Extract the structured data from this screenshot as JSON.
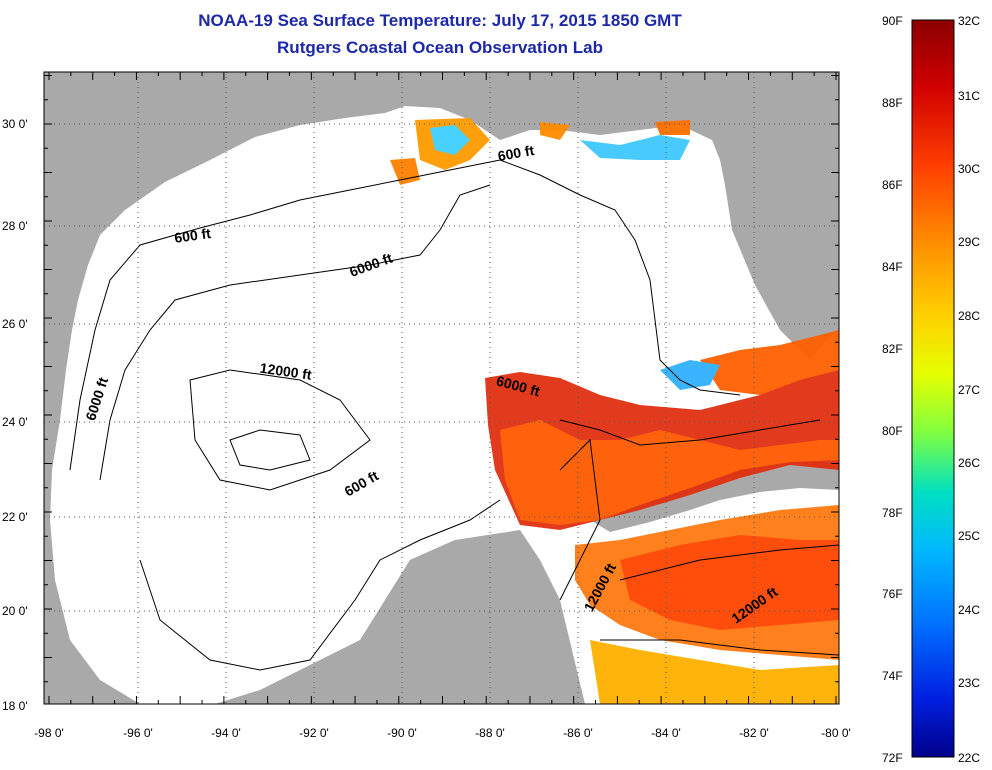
{
  "title": {
    "line1": "NOAA-19 Sea Surface Temperature:  July 17, 2015 1850 GMT",
    "line2": "Rutgers Coastal Ocean Observation Lab"
  },
  "map": {
    "lon_range": [
      -98,
      -80
    ],
    "lat_range": [
      18,
      31
    ],
    "x_tick_labels": [
      "-98 0'",
      "-96 0'",
      "-94 0'",
      "-92 0'",
      "-90 0'",
      "-88 0'",
      "-86 0'",
      "-84 0'",
      "-82 0'",
      "-80 0'"
    ],
    "y_tick_labels": [
      "18 0'",
      "20 0'",
      "22 0'",
      "24 0'",
      "26 0'",
      "28 0'",
      "30 0'"
    ],
    "land_color": "#a9a9a9",
    "no_data_color": "#ffffff",
    "contour_labels": [
      {
        "text": "600 ft",
        "lon": -94.7,
        "lat": 27.6,
        "rotation": -8
      },
      {
        "text": "6000 ft",
        "lon": -90.6,
        "lat": 27.0,
        "rotation": -20
      },
      {
        "text": "600 ft",
        "lon": -87.3,
        "lat": 29.3,
        "rotation": -10
      },
      {
        "text": "12000 ft",
        "lon": -92.6,
        "lat": 24.8,
        "rotation": 8
      },
      {
        "text": "6000 ft",
        "lon": -96.8,
        "lat": 24.3,
        "rotation": -72
      },
      {
        "text": "6000 ft",
        "lon": -87.3,
        "lat": 24.5,
        "rotation": 15
      },
      {
        "text": "600 ft",
        "lon": -90.8,
        "lat": 22.5,
        "rotation": -30
      },
      {
        "text": "12000 ft",
        "lon": -85.3,
        "lat": 20.4,
        "rotation": -62
      },
      {
        "text": "12000 ft",
        "lon": -81.8,
        "lat": 20.0,
        "rotation": -35
      }
    ]
  },
  "colorbar": {
    "f_labels": [
      "90F",
      "88F",
      "86F",
      "84F",
      "82F",
      "80F",
      "78F",
      "76F",
      "74F",
      "72F"
    ],
    "c_labels": [
      "32C",
      "31C",
      "30C",
      "29C",
      "28C",
      "27C",
      "26C",
      "25C",
      "24C",
      "23C",
      "22C"
    ],
    "colors": [
      "#8b0000",
      "#d00000",
      "#ff4000",
      "#ff8c00",
      "#ffd000",
      "#e6ff00",
      "#80ff40",
      "#00e0c0",
      "#00b8ff",
      "#0070ff",
      "#0020e0",
      "#00008b"
    ]
  }
}
